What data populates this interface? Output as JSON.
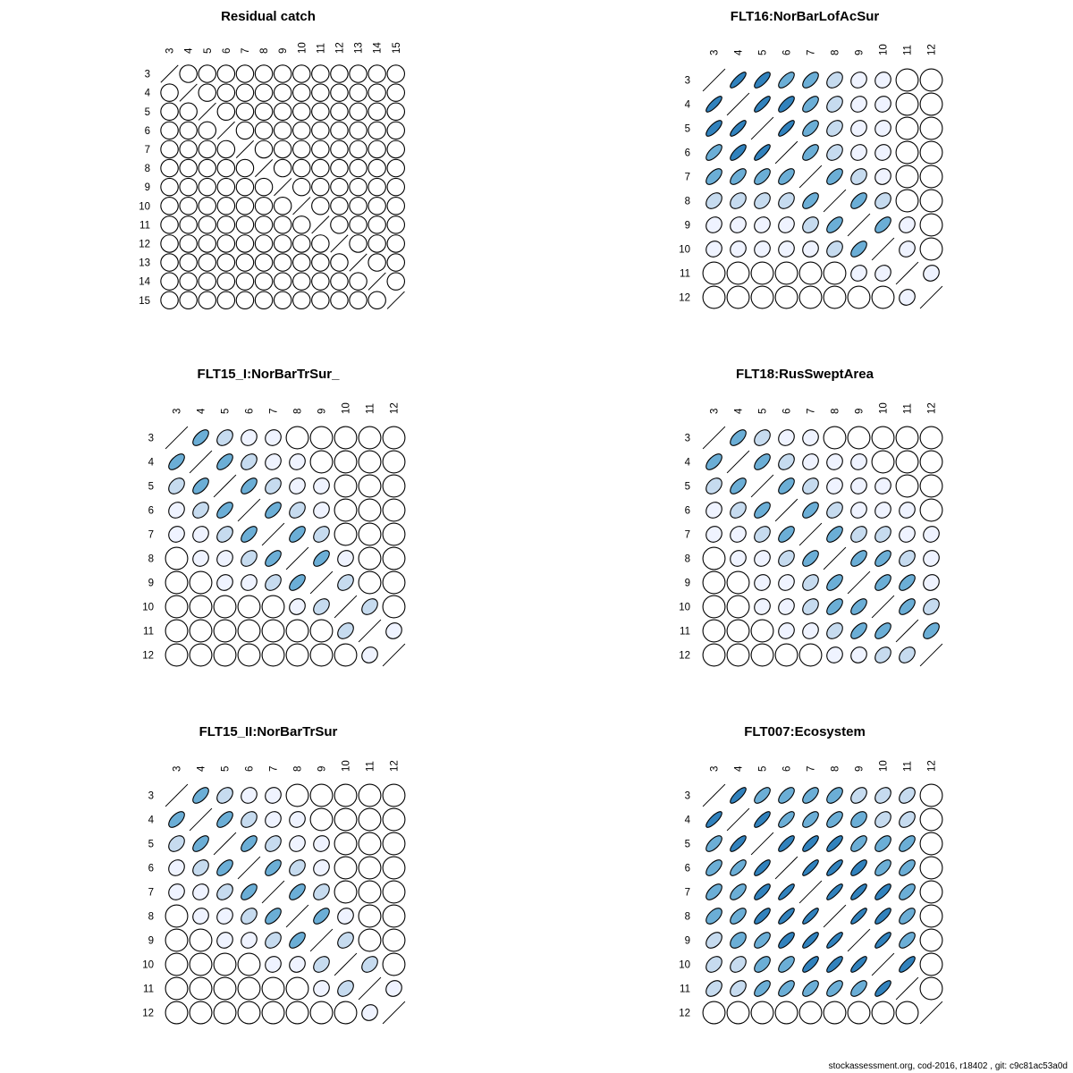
{
  "footer": "stockassessment.org, cod-2016, r18402 , git: c9c81ac53a0d",
  "colors": {
    "levels": [
      "#ffffff",
      "#eff3ff",
      "#c6dbef",
      "#6baed6",
      "#3182bd"
    ],
    "stroke": "#000000"
  },
  "chart_data": [
    {
      "type": "heatmap",
      "glyph": "correlation-ellipse",
      "title": "Residual catch",
      "ages": [
        "3",
        "4",
        "5",
        "6",
        "7",
        "8",
        "9",
        "10",
        "11",
        "12",
        "13",
        "14",
        "15"
      ],
      "correlation": [
        [
          1,
          0,
          0,
          0,
          0,
          0,
          0,
          0,
          0,
          0,
          0,
          0,
          0
        ],
        [
          0,
          1,
          0,
          0,
          0,
          0,
          0,
          0,
          0,
          0,
          0,
          0,
          0
        ],
        [
          0,
          0,
          1,
          0,
          0,
          0,
          0,
          0,
          0,
          0,
          0,
          0,
          0
        ],
        [
          0,
          0,
          0,
          1,
          0,
          0,
          0,
          0,
          0,
          0,
          0,
          0,
          0
        ],
        [
          0,
          0,
          0,
          0,
          1,
          0,
          0,
          0,
          0,
          0,
          0,
          0,
          0
        ],
        [
          0,
          0,
          0,
          0,
          0,
          1,
          0,
          0,
          0,
          0,
          0,
          0,
          0
        ],
        [
          0,
          0,
          0,
          0,
          0,
          0,
          1,
          0,
          0,
          0,
          0,
          0,
          0
        ],
        [
          0,
          0,
          0,
          0,
          0,
          0,
          0,
          1,
          0,
          0,
          0,
          0,
          0
        ],
        [
          0,
          0,
          0,
          0,
          0,
          0,
          0,
          0,
          1,
          0,
          0,
          0,
          0
        ],
        [
          0,
          0,
          0,
          0,
          0,
          0,
          0,
          0,
          0,
          1,
          0,
          0,
          0
        ],
        [
          0,
          0,
          0,
          0,
          0,
          0,
          0,
          0,
          0,
          0,
          1,
          0,
          0
        ],
        [
          0,
          0,
          0,
          0,
          0,
          0,
          0,
          0,
          0,
          0,
          0,
          1,
          0
        ],
        [
          0,
          0,
          0,
          0,
          0,
          0,
          0,
          0,
          0,
          0,
          0,
          0,
          1
        ]
      ]
    },
    {
      "type": "heatmap",
      "glyph": "correlation-ellipse",
      "title": "FLT16:NorBarLofAcSur",
      "ages": [
        "3",
        "4",
        "5",
        "6",
        "7",
        "8",
        "9",
        "10",
        "11",
        "12"
      ],
      "correlation": [
        [
          1,
          0.82,
          0.75,
          0.68,
          0.6,
          0.35,
          0.15,
          0.1,
          0,
          0
        ],
        [
          0.82,
          1,
          0.82,
          0.75,
          0.62,
          0.35,
          0.15,
          0.1,
          0,
          0
        ],
        [
          0.75,
          0.82,
          1,
          0.82,
          0.62,
          0.35,
          0.15,
          0.1,
          0,
          0
        ],
        [
          0.68,
          0.75,
          0.82,
          1,
          0.62,
          0.35,
          0.15,
          0.1,
          0,
          0
        ],
        [
          0.6,
          0.62,
          0.62,
          0.62,
          1,
          0.6,
          0.3,
          0.12,
          0,
          0
        ],
        [
          0.35,
          0.35,
          0.35,
          0.35,
          0.6,
          1,
          0.6,
          0.3,
          0,
          0
        ],
        [
          0.15,
          0.15,
          0.15,
          0.15,
          0.3,
          0.6,
          1,
          0.6,
          0.15,
          0
        ],
        [
          0.1,
          0.1,
          0.1,
          0.1,
          0.12,
          0.3,
          0.6,
          1,
          0.15,
          0
        ],
        [
          0,
          0,
          0,
          0,
          0,
          0,
          0.15,
          0.15,
          1,
          0.12
        ],
        [
          0,
          0,
          0,
          0,
          0,
          0,
          0,
          0,
          0.12,
          1
        ]
      ]
    },
    {
      "type": "heatmap",
      "glyph": "correlation-ellipse",
      "title": "FLT15_I:NorBarTrSur_",
      "ages": [
        "3",
        "4",
        "5",
        "6",
        "7",
        "8",
        "9",
        "10",
        "11",
        "12"
      ],
      "correlation": [
        [
          1,
          0.6,
          0.35,
          0.15,
          0.1,
          0,
          0,
          0,
          0,
          0
        ],
        [
          0.6,
          1,
          0.6,
          0.35,
          0.15,
          0.1,
          0,
          0,
          0,
          0
        ],
        [
          0.35,
          0.6,
          1,
          0.6,
          0.35,
          0.15,
          0.1,
          0,
          0,
          0
        ],
        [
          0.15,
          0.35,
          0.6,
          1,
          0.6,
          0.35,
          0.15,
          0,
          0,
          0
        ],
        [
          0.1,
          0.15,
          0.35,
          0.6,
          1,
          0.6,
          0.35,
          0,
          0,
          0
        ],
        [
          0,
          0.1,
          0.15,
          0.35,
          0.6,
          1,
          0.6,
          0.12,
          0,
          0
        ],
        [
          0,
          0,
          0.1,
          0.15,
          0.35,
          0.6,
          1,
          0.35,
          0,
          0
        ],
        [
          0,
          0,
          0,
          0,
          0,
          0.12,
          0.35,
          1,
          0.35,
          0
        ],
        [
          0,
          0,
          0,
          0,
          0,
          0,
          0,
          0.35,
          1,
          0.12
        ],
        [
          0,
          0,
          0,
          0,
          0,
          0,
          0,
          0,
          0.12,
          1
        ]
      ]
    },
    {
      "type": "heatmap",
      "glyph": "correlation-ellipse",
      "title": "FLT18:RusSweptArea",
      "ages": [
        "3",
        "4",
        "5",
        "6",
        "7",
        "8",
        "9",
        "10",
        "11",
        "12"
      ],
      "correlation": [
        [
          1,
          0.6,
          0.35,
          0.15,
          0.1,
          0,
          0,
          0,
          0,
          0
        ],
        [
          0.6,
          1,
          0.6,
          0.35,
          0.15,
          0.1,
          0.1,
          0,
          0,
          0
        ],
        [
          0.35,
          0.6,
          1,
          0.6,
          0.35,
          0.15,
          0.1,
          0.1,
          0,
          0
        ],
        [
          0.15,
          0.35,
          0.6,
          1,
          0.6,
          0.35,
          0.15,
          0.15,
          0.1,
          0
        ],
        [
          0.1,
          0.15,
          0.35,
          0.6,
          1,
          0.6,
          0.35,
          0.35,
          0.15,
          0.1
        ],
        [
          0,
          0.1,
          0.15,
          0.35,
          0.6,
          1,
          0.6,
          0.6,
          0.35,
          0.1
        ],
        [
          0,
          0,
          0.1,
          0.15,
          0.35,
          0.6,
          1,
          0.6,
          0.6,
          0.12
        ],
        [
          0,
          0,
          0.1,
          0.15,
          0.35,
          0.6,
          0.6,
          1,
          0.6,
          0.35
        ],
        [
          0,
          0,
          0,
          0.1,
          0.15,
          0.35,
          0.6,
          0.6,
          1,
          0.55
        ],
        [
          0,
          0,
          0,
          0,
          0,
          0.1,
          0.12,
          0.35,
          0.35,
          1
        ]
      ]
    },
    {
      "type": "heatmap",
      "glyph": "correlation-ellipse",
      "title": "FLT15_II:NorBarTrSur",
      "ages": [
        "3",
        "4",
        "5",
        "6",
        "7",
        "8",
        "9",
        "10",
        "11",
        "12"
      ],
      "correlation": [
        [
          1,
          0.6,
          0.35,
          0.15,
          0.1,
          0,
          0,
          0,
          0,
          0
        ],
        [
          0.6,
          1,
          0.6,
          0.35,
          0.15,
          0.1,
          0,
          0,
          0,
          0
        ],
        [
          0.35,
          0.6,
          1,
          0.6,
          0.35,
          0.15,
          0.1,
          0,
          0,
          0
        ],
        [
          0.15,
          0.35,
          0.6,
          1,
          0.6,
          0.35,
          0.15,
          0,
          0,
          0
        ],
        [
          0.1,
          0.15,
          0.35,
          0.6,
          1,
          0.6,
          0.35,
          0,
          0,
          0
        ],
        [
          0,
          0.1,
          0.15,
          0.35,
          0.6,
          1,
          0.6,
          0.12,
          0,
          0
        ],
        [
          0,
          0,
          0.1,
          0.15,
          0.35,
          0.6,
          1,
          0.35,
          0,
          0
        ],
        [
          0,
          0,
          0,
          0,
          0.1,
          0.12,
          0.35,
          1,
          0.35,
          0
        ],
        [
          0,
          0,
          0,
          0,
          0,
          0,
          0.1,
          0.35,
          1,
          0.12
        ],
        [
          0,
          0,
          0,
          0,
          0,
          0,
          0,
          0,
          0.12,
          1
        ]
      ]
    },
    {
      "type": "heatmap",
      "glyph": "correlation-ellipse",
      "title": "FLT007:Ecosystem",
      "ages": [
        "3",
        "4",
        "5",
        "6",
        "7",
        "8",
        "9",
        "10",
        "11",
        "12"
      ],
      "correlation": [
        [
          1,
          0.8,
          0.65,
          0.62,
          0.6,
          0.55,
          0.4,
          0.35,
          0.4,
          0
        ],
        [
          0.8,
          1,
          0.8,
          0.7,
          0.62,
          0.6,
          0.45,
          0.35,
          0.4,
          0
        ],
        [
          0.65,
          0.8,
          1,
          0.8,
          0.78,
          0.78,
          0.62,
          0.55,
          0.62,
          0
        ],
        [
          0.62,
          0.7,
          0.8,
          1,
          0.85,
          0.82,
          0.75,
          0.62,
          0.62,
          0
        ],
        [
          0.6,
          0.62,
          0.78,
          0.85,
          1,
          0.85,
          0.82,
          0.78,
          0.62,
          0
        ],
        [
          0.55,
          0.6,
          0.78,
          0.82,
          0.85,
          1,
          0.85,
          0.8,
          0.62,
          0
        ],
        [
          0.4,
          0.45,
          0.62,
          0.75,
          0.82,
          0.85,
          1,
          0.82,
          0.62,
          0
        ],
        [
          0.35,
          0.35,
          0.55,
          0.62,
          0.78,
          0.8,
          0.82,
          1,
          0.78,
          0
        ],
        [
          0.4,
          0.4,
          0.62,
          0.62,
          0.62,
          0.62,
          0.62,
          0.78,
          1,
          0
        ],
        [
          0,
          0,
          0,
          0,
          0,
          0,
          0,
          0,
          0,
          1
        ]
      ]
    }
  ]
}
